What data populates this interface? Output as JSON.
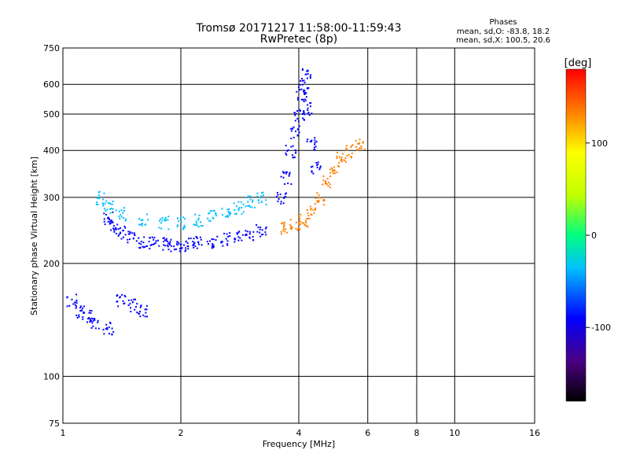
{
  "chart_data": {
    "type": "scatter",
    "title": "Tromsø 20171217 11:58:00-11:59:43",
    "subtitle": "RwPretec (8p)",
    "xlabel": "Frequency [MHz]",
    "ylabel": "Stationary phase Virtual Height [km]",
    "x_scale": "log",
    "y_scale": "log",
    "xlim": [
      1,
      16
    ],
    "ylim": [
      75,
      750
    ],
    "x_ticks": [
      1,
      2,
      4,
      6,
      8,
      10,
      16
    ],
    "y_ticks": [
      75,
      100,
      200,
      300,
      400,
      500,
      600,
      750
    ],
    "grid": true,
    "info": {
      "title": "Phases",
      "line1": "mean, sd,O: -83.8, 18.2",
      "line2": "mean, sd,X: 100.5, 20.6"
    },
    "colorbar": {
      "label": "[deg]",
      "range": [
        -180,
        180
      ],
      "ticks": [
        100,
        0,
        -100
      ],
      "colormap": "rainbow"
    },
    "traces": [
      {
        "description_key": "F-layer O-mode trace",
        "phase": -90,
        "points": [
          [
            1.3,
            265
          ],
          [
            1.35,
            252
          ],
          [
            1.4,
            243
          ],
          [
            1.5,
            235
          ],
          [
            1.6,
            230
          ],
          [
            1.7,
            228
          ],
          [
            1.8,
            226
          ],
          [
            1.9,
            225
          ],
          [
            2.0,
            225
          ],
          [
            2.1,
            226
          ],
          [
            2.2,
            228
          ],
          [
            2.4,
            230
          ],
          [
            2.6,
            233
          ],
          [
            2.8,
            236
          ],
          [
            3.0,
            240
          ],
          [
            3.2,
            245
          ]
        ]
      },
      {
        "description_key": "F-layer upper trace",
        "phase": -80,
        "points": [
          [
            1.25,
            300
          ],
          [
            1.3,
            285
          ],
          [
            1.4,
            272
          ],
          [
            1.6,
            262
          ],
          [
            1.8,
            258
          ],
          [
            2.0,
            258
          ],
          [
            2.2,
            262
          ],
          [
            2.4,
            268
          ],
          [
            2.6,
            275
          ],
          [
            2.8,
            283
          ],
          [
            3.0,
            292
          ],
          [
            3.2,
            300
          ]
        ]
      },
      {
        "description_key": "Spread F near 4 MHz",
        "phase": -95,
        "points": [
          [
            3.6,
            300
          ],
          [
            3.7,
            340
          ],
          [
            3.8,
            400
          ],
          [
            3.9,
            450
          ],
          [
            4.0,
            500
          ],
          [
            4.05,
            560
          ],
          [
            4.1,
            600
          ],
          [
            4.15,
            640
          ],
          [
            4.2,
            520
          ],
          [
            4.3,
            420
          ],
          [
            4.4,
            360
          ]
        ]
      },
      {
        "description_key": "X-mode trace",
        "phase": 100,
        "points": [
          [
            3.7,
            250
          ],
          [
            3.9,
            255
          ],
          [
            4.1,
            262
          ],
          [
            4.3,
            275
          ],
          [
            4.5,
            300
          ],
          [
            4.7,
            330
          ],
          [
            4.9,
            360
          ],
          [
            5.1,
            385
          ],
          [
            5.4,
            400
          ],
          [
            5.7,
            420
          ]
        ]
      },
      {
        "description_key": "Lower E-region echoes",
        "phase": -100,
        "points": [
          [
            1.05,
            160
          ],
          [
            1.1,
            150
          ],
          [
            1.15,
            145
          ],
          [
            1.2,
            140
          ],
          [
            1.3,
            135
          ],
          [
            1.4,
            160
          ],
          [
            1.5,
            155
          ],
          [
            1.6,
            150
          ]
        ]
      }
    ]
  }
}
